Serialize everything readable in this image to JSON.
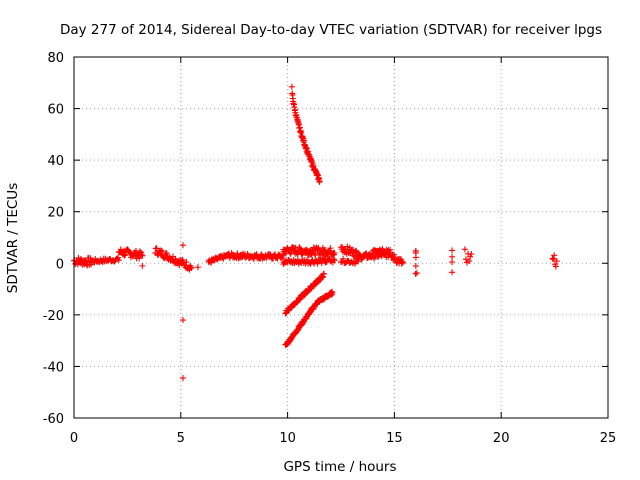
{
  "chart_data": {
    "type": "scatter",
    "title": "Day 277 of 2014, Sidereal Day-to-day VTEC variation (SDTVAR) for receiver lpgs",
    "xlabel": "GPS time / hours",
    "ylabel": "SDTVAR / TECUs",
    "xlim": [
      0,
      25
    ],
    "ylim": [
      -60,
      80
    ],
    "xticks": [
      0,
      5,
      10,
      15,
      20,
      25
    ],
    "yticks": [
      -60,
      -40,
      -20,
      0,
      20,
      40,
      60,
      80
    ],
    "grid": true,
    "marker": "plus",
    "color": "#ff0000",
    "segments": [
      {
        "x0": 0.0,
        "x1": 0.8,
        "y0": 1.0,
        "y1": 0.5,
        "spread": 1.6,
        "step": 0.03
      },
      {
        "x0": 0.8,
        "x1": 2.1,
        "y0": 0.8,
        "y1": 1.5,
        "spread": 0.8,
        "step": 0.04
      },
      {
        "x0": 2.1,
        "x1": 3.2,
        "y0": 4.5,
        "y1": 3.0,
        "spread": 1.5,
        "step": 0.03
      },
      {
        "x0": 3.8,
        "x1": 5.5,
        "y0": 5.0,
        "y1": -1.5,
        "spread": 1.4,
        "step": 0.03
      },
      {
        "x0": 6.3,
        "x1": 7.2,
        "y0": 0.5,
        "y1": 3.0,
        "spread": 0.8,
        "step": 0.03
      },
      {
        "x0": 7.2,
        "x1": 9.8,
        "y0": 3.0,
        "y1": 2.5,
        "spread": 1.0,
        "step": 0.03
      },
      {
        "x0": 9.8,
        "x1": 12.2,
        "y0": 5.0,
        "y1": 4.5,
        "spread": 1.5,
        "step": 0.025
      },
      {
        "x0": 9.8,
        "x1": 12.2,
        "y0": 0.5,
        "y1": 1.0,
        "spread": 1.0,
        "step": 0.04
      },
      {
        "x0": 12.5,
        "x1": 13.3,
        "y0": 6.0,
        "y1": 3.5,
        "spread": 1.5,
        "step": 0.03
      },
      {
        "x0": 12.5,
        "x1": 13.3,
        "y0": 1.0,
        "y1": 0.5,
        "spread": 0.8,
        "step": 0.05
      },
      {
        "x0": 13.3,
        "x1": 14.8,
        "y0": 2.5,
        "y1": 3.5,
        "spread": 1.2,
        "step": 0.03
      },
      {
        "x0": 14.0,
        "x1": 14.8,
        "y0": 5.5,
        "y1": 5.0,
        "spread": 1.0,
        "step": 0.04
      },
      {
        "x0": 14.8,
        "x1": 15.4,
        "y0": 3.0,
        "y1": 0.0,
        "spread": 1.5,
        "step": 0.03
      },
      {
        "x0": 16.0,
        "x1": 16.0,
        "y0": 0.0,
        "y1": 0.0,
        "spread": 5.0,
        "step": 1
      },
      {
        "x0": 18.3,
        "x1": 18.6,
        "y0": 3.0,
        "y1": 1.5,
        "spread": 2.5,
        "step": 0.05
      },
      {
        "x0": 22.4,
        "x1": 22.6,
        "y0": 3.5,
        "y1": -0.5,
        "spread": 2.0,
        "step": 0.04
      },
      {
        "x0": 9.9,
        "x1": 11.4,
        "y0": -32,
        "y1": -15,
        "spread": 0.6,
        "step": 0.02
      },
      {
        "x0": 11.4,
        "x1": 12.1,
        "y0": -15,
        "y1": -11.5,
        "spread": 0.6,
        "step": 0.02
      },
      {
        "x0": 9.9,
        "x1": 11.7,
        "y0": -19,
        "y1": -4.5,
        "spread": 0.6,
        "step": 0.02
      }
    ],
    "arcs": [
      {
        "x0": 10.2,
        "x1": 11.5,
        "y0": 68,
        "y1": 32,
        "curve": 0.35,
        "spread": 0.7,
        "step": 0.015
      }
    ],
    "points": [
      {
        "x": 3.2,
        "y": -1.0
      },
      {
        "x": 5.1,
        "y": 7.0
      },
      {
        "x": 5.1,
        "y": -22.0
      },
      {
        "x": 5.1,
        "y": -44.5
      },
      {
        "x": 5.8,
        "y": -1.5
      },
      {
        "x": 16.05,
        "y": -3.8
      },
      {
        "x": 17.7,
        "y": 5.0
      },
      {
        "x": 17.7,
        "y": 2.5
      },
      {
        "x": 17.7,
        "y": -3.5
      },
      {
        "x": 17.7,
        "y": 0.5
      }
    ]
  }
}
